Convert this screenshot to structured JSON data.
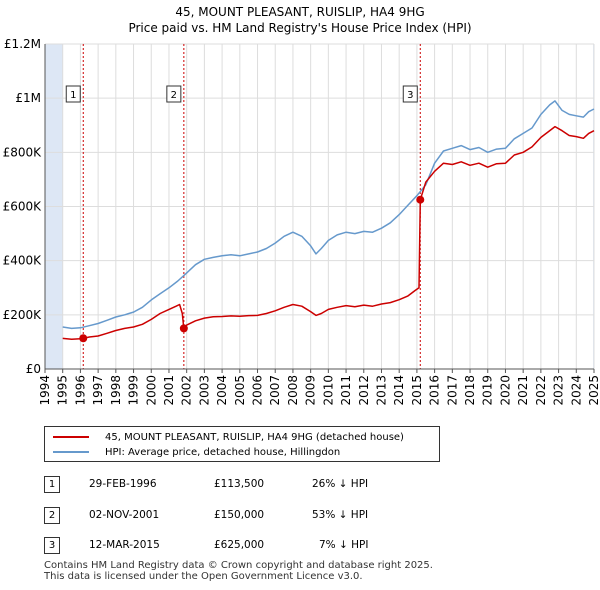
{
  "title_line1": "45, MOUNT PLEASANT, RUISLIP, HA4 9HG",
  "title_line2": "Price paid vs. HM Land Registry's House Price Index (HPI)",
  "colors": {
    "price": "#cc0000",
    "hpi": "#6699cc",
    "shade": "#dde7f5",
    "grid": "#dddddd"
  },
  "chart_data": {
    "type": "line",
    "xlim": [
      1994,
      2025
    ],
    "ylim": [
      0,
      1200000
    ],
    "yticks": [
      {
        "value": 0,
        "label": "£0"
      },
      {
        "value": 200000,
        "label": "£200K"
      },
      {
        "value": 400000,
        "label": "£400K"
      },
      {
        "value": 600000,
        "label": "£600K"
      },
      {
        "value": 800000,
        "label": "£800K"
      },
      {
        "value": 1000000,
        "label": "£1M"
      },
      {
        "value": 1200000,
        "label": "£1.2M"
      }
    ],
    "xticks": [
      "1994",
      "1995",
      "1996",
      "1997",
      "1998",
      "1999",
      "2000",
      "2001",
      "2002",
      "2003",
      "2004",
      "2005",
      "2006",
      "2007",
      "2008",
      "2009",
      "2010",
      "2011",
      "2012",
      "2013",
      "2014",
      "2015",
      "2016",
      "2017",
      "2018",
      "2019",
      "2020",
      "2021",
      "2022",
      "2023",
      "2024",
      "2025"
    ],
    "shaded_ranges": [
      [
        1994,
        1995
      ],
      [
        2024.95,
        2025
      ]
    ],
    "series": [
      {
        "name": "45, MOUNT PLEASANT, RUISLIP, HA4 9HG (detached house)",
        "color": "#cc0000",
        "points": [
          [
            1995.0,
            113000
          ],
          [
            1995.5,
            110000
          ],
          [
            1996.0,
            112000
          ],
          [
            1996.16,
            113500
          ],
          [
            1996.5,
            118000
          ],
          [
            1997.0,
            122000
          ],
          [
            1997.5,
            132000
          ],
          [
            1998.0,
            142000
          ],
          [
            1998.5,
            150000
          ],
          [
            1999.0,
            155000
          ],
          [
            1999.5,
            165000
          ],
          [
            2000.0,
            183000
          ],
          [
            2000.5,
            205000
          ],
          [
            2001.0,
            220000
          ],
          [
            2001.4,
            232000
          ],
          [
            2001.6,
            238000
          ],
          [
            2001.75,
            205000
          ],
          [
            2001.84,
            150000
          ],
          [
            2002.0,
            162000
          ],
          [
            2002.5,
            178000
          ],
          [
            2003.0,
            188000
          ],
          [
            2003.5,
            193000
          ],
          [
            2004.0,
            194000
          ],
          [
            2004.5,
            196000
          ],
          [
            2005.0,
            195000
          ],
          [
            2005.5,
            197000
          ],
          [
            2006.0,
            198000
          ],
          [
            2006.5,
            205000
          ],
          [
            2007.0,
            215000
          ],
          [
            2007.5,
            228000
          ],
          [
            2008.0,
            238000
          ],
          [
            2008.5,
            232000
          ],
          [
            2009.0,
            212000
          ],
          [
            2009.3,
            198000
          ],
          [
            2009.6,
            205000
          ],
          [
            2010.0,
            220000
          ],
          [
            2010.5,
            228000
          ],
          [
            2011.0,
            234000
          ],
          [
            2011.5,
            230000
          ],
          [
            2012.0,
            236000
          ],
          [
            2012.5,
            232000
          ],
          [
            2013.0,
            240000
          ],
          [
            2013.5,
            245000
          ],
          [
            2014.0,
            256000
          ],
          [
            2014.5,
            270000
          ],
          [
            2014.9,
            290000
          ],
          [
            2015.12,
            300000
          ],
          [
            2015.19,
            625000
          ],
          [
            2015.5,
            690000
          ],
          [
            2016.0,
            730000
          ],
          [
            2016.5,
            760000
          ],
          [
            2017.0,
            755000
          ],
          [
            2017.5,
            765000
          ],
          [
            2018.0,
            752000
          ],
          [
            2018.5,
            760000
          ],
          [
            2019.0,
            745000
          ],
          [
            2019.5,
            758000
          ],
          [
            2020.0,
            760000
          ],
          [
            2020.5,
            790000
          ],
          [
            2021.0,
            800000
          ],
          [
            2021.5,
            820000
          ],
          [
            2022.0,
            855000
          ],
          [
            2022.4,
            875000
          ],
          [
            2022.8,
            895000
          ],
          [
            2023.2,
            880000
          ],
          [
            2023.6,
            862000
          ],
          [
            2024.0,
            858000
          ],
          [
            2024.4,
            852000
          ],
          [
            2024.7,
            870000
          ],
          [
            2025.0,
            880000
          ]
        ]
      },
      {
        "name": "HPI: Average price, detached house, Hillingdon",
        "color": "#6699cc",
        "points": [
          [
            1995.0,
            155000
          ],
          [
            1995.5,
            150000
          ],
          [
            1996.0,
            152000
          ],
          [
            1996.5,
            160000
          ],
          [
            1997.0,
            168000
          ],
          [
            1997.5,
            180000
          ],
          [
            1998.0,
            192000
          ],
          [
            1998.5,
            200000
          ],
          [
            1999.0,
            210000
          ],
          [
            1999.5,
            228000
          ],
          [
            2000.0,
            255000
          ],
          [
            2000.5,
            278000
          ],
          [
            2001.0,
            300000
          ],
          [
            2001.5,
            325000
          ],
          [
            2002.0,
            355000
          ],
          [
            2002.5,
            385000
          ],
          [
            2003.0,
            405000
          ],
          [
            2003.5,
            412000
          ],
          [
            2004.0,
            418000
          ],
          [
            2004.5,
            422000
          ],
          [
            2005.0,
            418000
          ],
          [
            2005.5,
            425000
          ],
          [
            2006.0,
            432000
          ],
          [
            2006.5,
            445000
          ],
          [
            2007.0,
            465000
          ],
          [
            2007.5,
            490000
          ],
          [
            2008.0,
            505000
          ],
          [
            2008.5,
            490000
          ],
          [
            2009.0,
            455000
          ],
          [
            2009.3,
            425000
          ],
          [
            2009.6,
            445000
          ],
          [
            2010.0,
            475000
          ],
          [
            2010.5,
            495000
          ],
          [
            2011.0,
            505000
          ],
          [
            2011.5,
            500000
          ],
          [
            2012.0,
            508000
          ],
          [
            2012.5,
            505000
          ],
          [
            2013.0,
            520000
          ],
          [
            2013.5,
            540000
          ],
          [
            2014.0,
            570000
          ],
          [
            2014.5,
            605000
          ],
          [
            2015.0,
            640000
          ],
          [
            2015.5,
            680000
          ],
          [
            2016.0,
            760000
          ],
          [
            2016.5,
            805000
          ],
          [
            2017.0,
            815000
          ],
          [
            2017.5,
            825000
          ],
          [
            2018.0,
            810000
          ],
          [
            2018.5,
            818000
          ],
          [
            2019.0,
            800000
          ],
          [
            2019.5,
            812000
          ],
          [
            2020.0,
            815000
          ],
          [
            2020.5,
            850000
          ],
          [
            2021.0,
            870000
          ],
          [
            2021.5,
            890000
          ],
          [
            2022.0,
            940000
          ],
          [
            2022.5,
            975000
          ],
          [
            2022.8,
            990000
          ],
          [
            2023.2,
            955000
          ],
          [
            2023.6,
            940000
          ],
          [
            2024.0,
            935000
          ],
          [
            2024.4,
            930000
          ],
          [
            2024.7,
            950000
          ],
          [
            2025.0,
            960000
          ]
        ]
      }
    ],
    "transactions": [
      {
        "marker": "1",
        "x": 1996.16,
        "y": 113500
      },
      {
        "marker": "2",
        "x": 2001.84,
        "y": 150000
      },
      {
        "marker": "3",
        "x": 2015.19,
        "y": 625000
      }
    ]
  },
  "legend": {
    "items": [
      {
        "label": "45, MOUNT PLEASANT, RUISLIP, HA4 9HG (detached house)",
        "color": "#cc0000"
      },
      {
        "label": "HPI: Average price, detached house, Hillingdon",
        "color": "#6699cc"
      }
    ]
  },
  "table": {
    "rows": [
      {
        "num": "1",
        "date": "29-FEB-1996",
        "price": "£113,500",
        "hpi": "26% ↓ HPI"
      },
      {
        "num": "2",
        "date": "02-NOV-2001",
        "price": "£150,000",
        "hpi": "53% ↓ HPI"
      },
      {
        "num": "3",
        "date": "12-MAR-2015",
        "price": "£625,000",
        "hpi": "7% ↓ HPI"
      }
    ]
  },
  "footer": {
    "line1": "Contains HM Land Registry data © Crown copyright and database right 2025.",
    "line2": "This data is licensed under the Open Government Licence v3.0."
  }
}
